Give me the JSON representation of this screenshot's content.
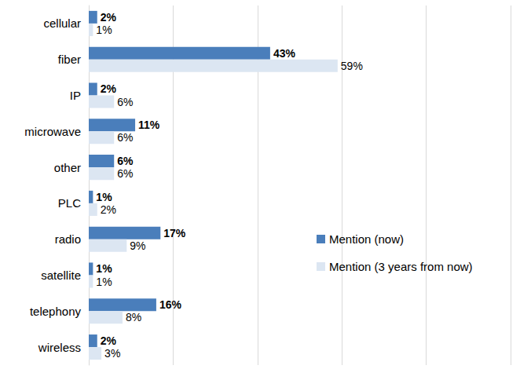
{
  "chart_data": {
    "type": "bar",
    "orientation": "horizontal",
    "categories": [
      "cellular",
      "fiber",
      "IP",
      "microwave",
      "other",
      "PLC",
      "radio",
      "satellite",
      "telephony",
      "wireless"
    ],
    "series": [
      {
        "name": "Mention (now)",
        "color": "#4a7ebb",
        "values": [
          2,
          43,
          2,
          11,
          6,
          1,
          17,
          1,
          16,
          2
        ],
        "value_labels": [
          "2%",
          "43%",
          "2%",
          "11%",
          "6%",
          "1%",
          "17%",
          "1%",
          "16%",
          "2%"
        ]
      },
      {
        "name": "Mention (3 years from now)",
        "color": "#dce6f2",
        "values": [
          1,
          59,
          6,
          6,
          6,
          2,
          9,
          1,
          8,
          3
        ],
        "value_labels": [
          "1%",
          "59%",
          "6%",
          "6%",
          "6%",
          "2%",
          "9%",
          "1%",
          "8%",
          "3%"
        ]
      }
    ],
    "xlim": [
      0,
      100
    ],
    "xticks": [
      0,
      20,
      40,
      60,
      80,
      100
    ],
    "grid": true,
    "legend": "right",
    "data_labels": true,
    "tick_labels": "y"
  }
}
